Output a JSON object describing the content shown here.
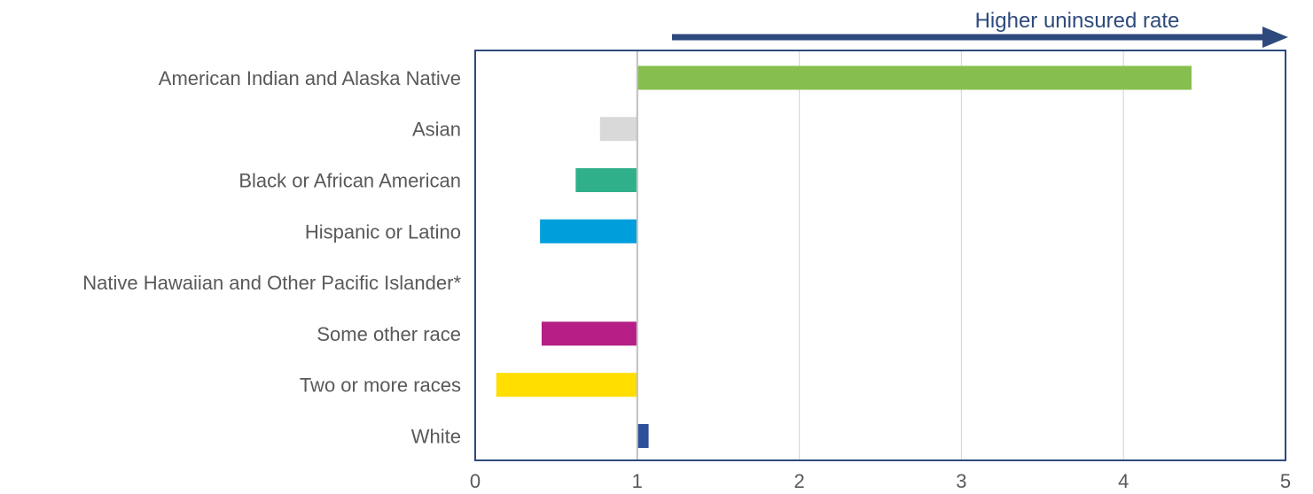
{
  "chart_data": {
    "type": "bar",
    "orientation": "horizontal",
    "baseline": 1,
    "categories": [
      "American Indian and Alaska Native",
      "Asian",
      "Black or African American",
      "Hispanic or Latino",
      "Native Hawaiian and Other Pacific Islander*",
      "Some other race",
      "Two or more races",
      "White"
    ],
    "values": [
      4.42,
      0.77,
      0.62,
      0.4,
      null,
      0.41,
      0.13,
      1.07
    ],
    "colors": [
      "#86bf4f",
      "#d9d9d9",
      "#2fb08a",
      "#009fdc",
      null,
      "#b51e84",
      "#ffde00",
      "#2e4f9a"
    ],
    "xlim": [
      0,
      5
    ],
    "xticks": [
      "0",
      "1",
      "2",
      "3",
      "4",
      "5"
    ],
    "grid": "vertical",
    "annotation": {
      "text": "Higher uninsured rate",
      "color": "#2e4a7d",
      "arrow": "right"
    },
    "frame_color": "#2e4a7d",
    "baseline_color": "#bfbfbf",
    "grid_color": "#d9d9d9",
    "text_color": "#595959"
  }
}
